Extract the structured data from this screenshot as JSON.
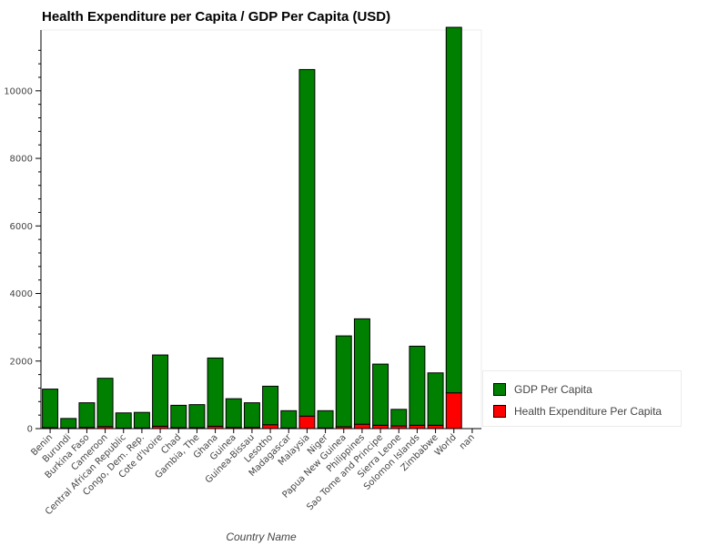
{
  "chart_data": {
    "type": "bar",
    "stacked": true,
    "title": "Health Expenditure per Capita / GDP Per Capita (USD)",
    "xlabel": "Country Name",
    "ylabel": "",
    "ylim": [
      0,
      11800
    ],
    "yticks": [
      0,
      2000,
      4000,
      6000,
      8000,
      10000
    ],
    "grid": false,
    "legend_position": "bottom-right",
    "categories": [
      "Benin",
      "Burundi",
      "Burkina Faso",
      "Cameroon",
      "Central African Republic",
      "Congo, Dem. Rep.",
      "Cote d'Ivoire",
      "Chad",
      "Gambia, The",
      "Ghana",
      "Guinea",
      "Guinea-Bissau",
      "Lesotho",
      "Madagascar",
      "Malaysia",
      "Niger",
      "Papua New Guinea",
      "Philippines",
      "Sao Tome and Principe",
      "Sierra Leone",
      "Solomon Islands",
      "Zimbabwe",
      "World",
      "nan"
    ],
    "series": [
      {
        "name": "Health Expenditure Per Capita",
        "color": "#ff0000",
        "values": [
          30,
          20,
          35,
          60,
          15,
          20,
          70,
          30,
          30,
          70,
          35,
          35,
          115,
          20,
          370,
          20,
          55,
          130,
          100,
          80,
          100,
          100,
          1060,
          0
        ]
      },
      {
        "name": "GDP Per Capita",
        "color": "#008000",
        "values": [
          1140,
          280,
          730,
          1430,
          450,
          460,
          2110,
          660,
          680,
          2020,
          850,
          730,
          1140,
          510,
          10260,
          510,
          2690,
          3120,
          1810,
          490,
          2340,
          1550,
          10820,
          0
        ]
      }
    ],
    "legend": [
      {
        "label": "GDP Per Capita",
        "color": "#008000"
      },
      {
        "label": "Health Expenditure Per Capita",
        "color": "#ff0000"
      }
    ]
  }
}
